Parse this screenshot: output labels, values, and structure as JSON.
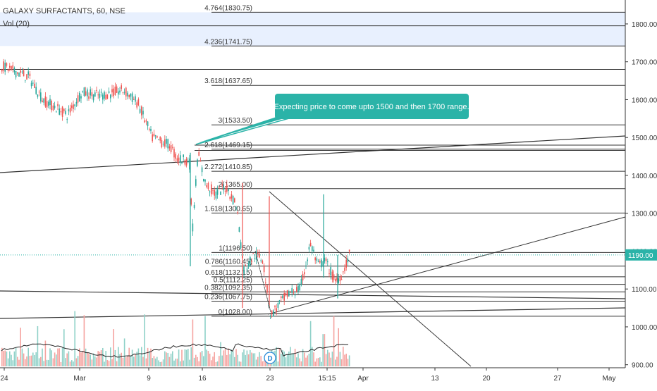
{
  "header": {
    "title": "GALAXY SURFACTANTS, 60, NSE",
    "volume_label": "Vol (20)"
  },
  "annotation": {
    "text": "Expecting price to come upto 1500 and then 1700 range."
  },
  "price_badge": "1190.00",
  "colors": {
    "up": "#26a69a",
    "down": "#ef5350",
    "up_vol": "#8fd1c8",
    "down_vol": "#f5a3a0",
    "band": "#e8f0fe",
    "callout": "#2bb3a8",
    "dotted": "#2bb3a8"
  },
  "chart_data": {
    "type": "candlestick",
    "title": "GALAXY SURFACTANTS, 60, NSE",
    "ylim": [
      885,
      1905
    ],
    "y_ticks": [
      "1800.00",
      "1700.00",
      "1600.00",
      "1500.00",
      "1400.00",
      "1300.00",
      "1200.00",
      "1100.00",
      "1000.00",
      "900.00"
    ],
    "x_ticks": [
      "24",
      "Mar",
      "9",
      "16",
      "23",
      "15:15",
      "Apr",
      "13",
      "20",
      "27",
      "May"
    ],
    "fib_levels": [
      {
        "label": "4.764(1830.75)",
        "value": 1830.75
      },
      {
        "label": "4.236(1741.75)",
        "value": 1741.75
      },
      {
        "label": "3.618(1637.65)",
        "value": 1637.65
      },
      {
        "label": "3(1533.50)",
        "value": 1533.5
      },
      {
        "label": "2.618(1469.15)",
        "value": 1469.15
      },
      {
        "label": "2.272(1410.85)",
        "value": 1410.85
      },
      {
        "label": "2(1365.00)",
        "value": 1365
      },
      {
        "label": "1.618(1300.65)",
        "value": 1300.65
      },
      {
        "label": "1(1196.50)",
        "value": 1196.5
      },
      {
        "label": "0.786(1160.45)",
        "value": 1160.45
      },
      {
        "label": "0.618(1132.15)",
        "value": 1132.15
      },
      {
        "label": "0.5(1112.25)",
        "value": 1112.25
      },
      {
        "label": "0.382(1092.35)",
        "value": 1092.35
      },
      {
        "label": "0.236(1067.75)",
        "value": 1067.75
      },
      {
        "label": "0(1028.00)",
        "value": 1028
      }
    ],
    "extra_levels": [
      1795,
      1680,
      1480
    ],
    "current_price": 1190,
    "event_marker": "D"
  }
}
